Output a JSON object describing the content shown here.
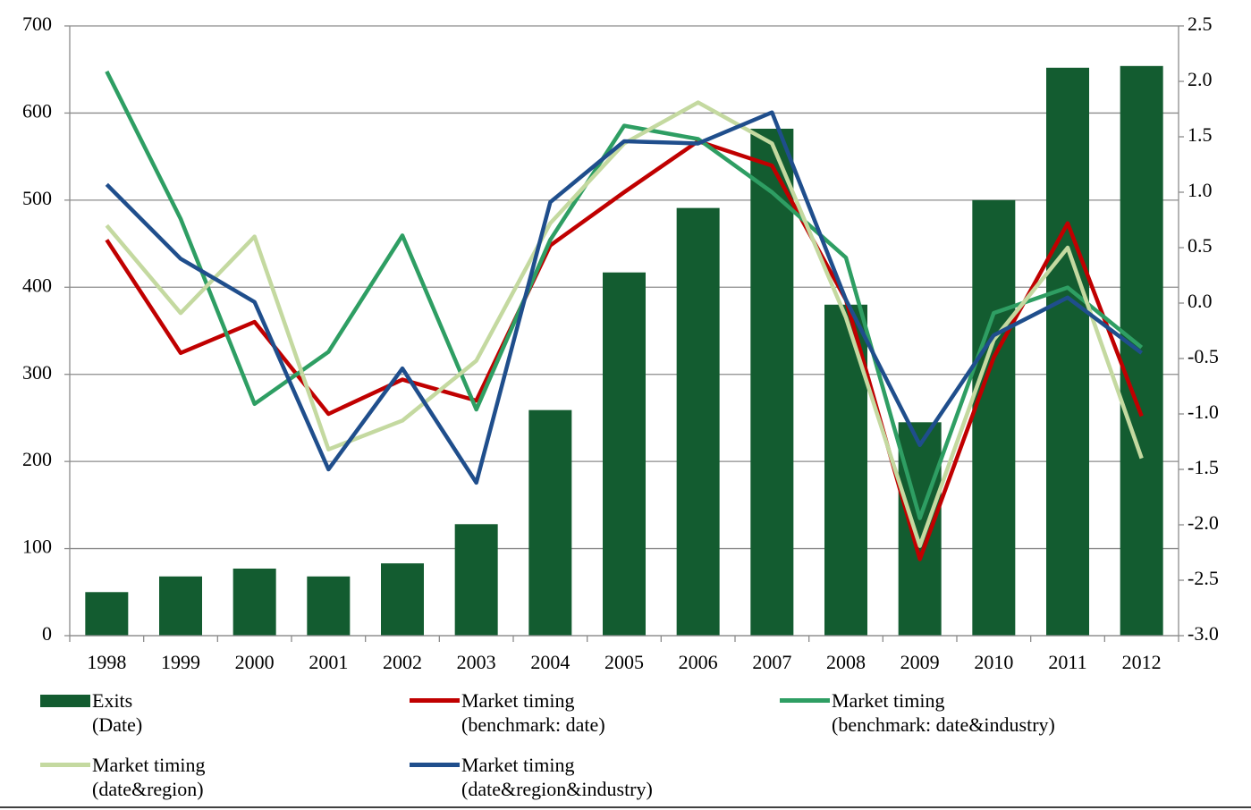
{
  "chart_data": {
    "type": "bar-line",
    "categories": [
      "1998",
      "1999",
      "2000",
      "2001",
      "2002",
      "2003",
      "2004",
      "2005",
      "2006",
      "2007",
      "2008",
      "2009",
      "2010",
      "2011",
      "2012"
    ],
    "ylim": [
      0,
      700
    ],
    "yticks": [
      0,
      100,
      200,
      300,
      400,
      500,
      600,
      700
    ],
    "y2lim": [
      -3.0,
      2.5
    ],
    "y2ticks": [
      2.5,
      {
        "value": 2.0,
        "label": "2.0"
      },
      1.5,
      {
        "value": 1.0,
        "label": "1.0"
      },
      0.5,
      {
        "value": 0.0,
        "label": "0.0"
      },
      -0.5,
      {
        "value": -1.0,
        "label": "-1.0"
      },
      -1.5,
      {
        "value": -2.0,
        "label": "-2.0"
      },
      -2.5,
      {
        "value": -3.0,
        "label": "-3.0"
      }
    ],
    "grid": true,
    "series": [
      {
        "name": "Exits\n(Date)",
        "type": "bar",
        "color": "#135c30",
        "values": [
          50,
          68,
          77,
          68,
          83,
          128,
          259,
          417,
          491,
          582,
          380,
          245,
          500,
          652,
          654
        ]
      },
      {
        "name": "Market timing\n(benchmark: date)",
        "type": "line",
        "axis": "y2",
        "color": "#c00000",
        "values": [
          0.57,
          -0.45,
          -0.17,
          -1.0,
          -0.69,
          -0.88,
          0.52,
          1.0,
          1.46,
          1.24,
          0.03,
          -2.31,
          -0.49,
          0.72,
          -1.02
        ]
      },
      {
        "name": "Market timing\n(benchmark: date&industry)",
        "type": "line",
        "axis": "y2",
        "color": "#2e9e63",
        "values": [
          2.09,
          0.76,
          -0.91,
          -0.44,
          0.61,
          -0.96,
          0.57,
          1.6,
          1.48,
          1.0,
          0.41,
          -1.94,
          -0.09,
          0.14,
          -0.4
        ]
      },
      {
        "name": "Market timing\n(date&region)",
        "type": "line",
        "axis": "y2",
        "color": "#c4d9a0",
        "values": [
          0.7,
          -0.09,
          0.6,
          -1.32,
          -1.06,
          -0.52,
          0.72,
          1.44,
          1.81,
          1.44,
          -0.13,
          -2.19,
          -0.33,
          0.5,
          -1.4
        ]
      },
      {
        "name": "Market timing\n(date&region&industry)",
        "type": "line",
        "axis": "y2",
        "color": "#1f4e8c",
        "values": [
          1.07,
          0.4,
          0.01,
          -1.5,
          -0.59,
          -1.62,
          0.91,
          1.46,
          1.44,
          1.72,
          0.03,
          -1.28,
          -0.29,
          0.05,
          -0.45
        ]
      }
    ]
  }
}
